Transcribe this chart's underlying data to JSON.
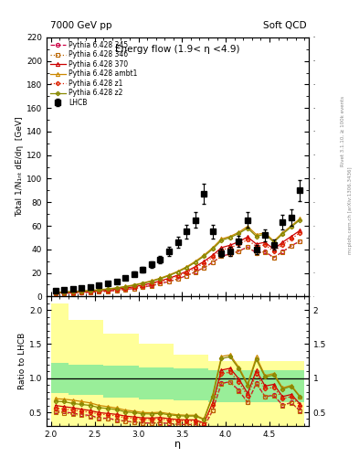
{
  "title_left": "7000 GeV pp",
  "title_right": "Soft QCD",
  "plot_title": "Energy flow (1.9< η <4.9)",
  "ylabel_main": "Total 1/N₁ₙₜ dE/dη  [GeV]",
  "ylabel_ratio": "Ratio to LHCB",
  "xlabel": "η",
  "right_label": "Rivet 3.1.10, ≥ 100k events",
  "right_label2": "mcplots.cern.ch [arXiv:1306.3436]",
  "lhcb_eta": [
    2.05,
    2.15,
    2.25,
    2.35,
    2.45,
    2.55,
    2.65,
    2.75,
    2.85,
    2.95,
    3.05,
    3.15,
    3.25,
    3.35,
    3.45,
    3.55,
    3.65,
    3.75,
    3.85,
    3.95,
    4.05,
    4.15,
    4.25,
    4.35,
    4.45,
    4.55,
    4.65,
    4.75,
    4.85
  ],
  "lhcb_vals": [
    5.0,
    5.5,
    6.2,
    7.0,
    8.0,
    9.5,
    11.0,
    13.0,
    16.0,
    19.0,
    23.0,
    27.0,
    31.0,
    38.0,
    46.0,
    55.0,
    65.0,
    87.0,
    55.0,
    37.0,
    38.0,
    47.0,
    65.0,
    40.0,
    52.0,
    44.0,
    63.0,
    67.0,
    90.0
  ],
  "lhcb_err_lo": [
    0.5,
    0.5,
    0.6,
    0.7,
    0.8,
    0.9,
    1.1,
    1.3,
    1.6,
    1.9,
    2.3,
    2.7,
    3.1,
    3.8,
    4.6,
    5.5,
    6.5,
    8.7,
    5.5,
    3.7,
    3.8,
    4.7,
    6.5,
    4.0,
    5.2,
    4.4,
    6.3,
    6.7,
    9.0
  ],
  "lhcb_err_hi": [
    0.5,
    0.5,
    0.6,
    0.7,
    0.8,
    0.9,
    1.1,
    1.3,
    1.6,
    1.9,
    2.3,
    2.7,
    3.1,
    3.8,
    4.6,
    5.5,
    6.5,
    8.7,
    5.5,
    3.7,
    3.8,
    4.7,
    6.5,
    4.0,
    5.2,
    4.4,
    6.3,
    6.7,
    9.0
  ],
  "eta_pts": [
    2.05,
    2.15,
    2.25,
    2.35,
    2.45,
    2.55,
    2.65,
    2.75,
    2.85,
    2.95,
    3.05,
    3.15,
    3.25,
    3.35,
    3.45,
    3.55,
    3.65,
    3.75,
    3.85,
    3.95,
    4.05,
    4.15,
    4.25,
    4.35,
    4.45,
    4.55,
    4.65,
    4.75,
    4.85
  ],
  "p345_vals": [
    2.6,
    2.8,
    3.0,
    3.3,
    3.6,
    4.0,
    4.5,
    5.1,
    5.9,
    6.8,
    7.9,
    9.2,
    10.8,
    12.7,
    14.9,
    17.6,
    20.8,
    24.5,
    28.9,
    34.2,
    36.0,
    38.5,
    42.0,
    37.0,
    38.0,
    33.0,
    38.0,
    43.0,
    47.0
  ],
  "p346_vals": [
    2.5,
    2.7,
    2.9,
    3.2,
    3.5,
    3.9,
    4.4,
    5.0,
    5.8,
    6.7,
    7.8,
    9.1,
    10.7,
    12.6,
    14.8,
    17.5,
    20.7,
    24.4,
    28.8,
    34.1,
    35.8,
    38.2,
    41.8,
    36.8,
    37.8,
    32.8,
    37.8,
    42.8,
    46.8
  ],
  "p370_vals": [
    3.0,
    3.2,
    3.5,
    3.8,
    4.2,
    4.7,
    5.3,
    6.1,
    7.1,
    8.2,
    9.6,
    11.2,
    13.1,
    15.4,
    18.1,
    21.3,
    25.2,
    29.7,
    35.0,
    41.4,
    43.5,
    46.5,
    50.5,
    44.5,
    46.0,
    40.0,
    46.0,
    51.0,
    56.0
  ],
  "pambt1_vals": [
    3.5,
    3.8,
    4.2,
    4.6,
    5.1,
    5.7,
    6.4,
    7.3,
    8.5,
    9.8,
    11.4,
    13.3,
    15.5,
    18.2,
    21.3,
    25.1,
    29.7,
    35.0,
    41.3,
    48.8,
    51.0,
    54.5,
    59.5,
    52.5,
    54.0,
    47.0,
    54.0,
    60.0,
    66.0
  ],
  "pz1_vals": [
    2.8,
    3.0,
    3.3,
    3.6,
    4.0,
    4.5,
    5.1,
    5.8,
    6.7,
    7.8,
    9.1,
    10.6,
    12.4,
    14.6,
    17.2,
    20.2,
    23.9,
    28.2,
    33.3,
    39.4,
    41.4,
    44.2,
    48.2,
    42.4,
    43.8,
    38.1,
    43.9,
    49.0,
    54.0
  ],
  "pz2_vals": [
    3.3,
    3.6,
    3.9,
    4.3,
    4.8,
    5.4,
    6.1,
    7.0,
    8.1,
    9.4,
    11.0,
    12.8,
    15.0,
    17.6,
    20.7,
    24.4,
    28.9,
    34.1,
    40.2,
    47.6,
    50.0,
    53.5,
    58.0,
    51.0,
    53.0,
    46.0,
    53.0,
    59.0,
    65.0
  ],
  "ylim_main": [
    0,
    220
  ],
  "ylim_ratio": [
    0.3,
    2.2
  ],
  "band_eta_edges": [
    2.0,
    2.1,
    2.2,
    2.3,
    2.4,
    2.5,
    2.6,
    2.7,
    2.8,
    2.9,
    3.0,
    3.1,
    3.2,
    3.3,
    3.4,
    3.5,
    3.6,
    3.7,
    3.8,
    3.9,
    4.0,
    4.1,
    4.2,
    4.3,
    4.4,
    4.5,
    4.6,
    4.7,
    4.8,
    4.9
  ],
  "band_yellow_lo": [
    0.3,
    0.3,
    0.3,
    0.3,
    0.3,
    0.3,
    0.3,
    0.3,
    0.3,
    0.3,
    0.3,
    0.3,
    0.3,
    0.3,
    0.3,
    0.3,
    0.3,
    0.3,
    0.3,
    0.3,
    0.3,
    0.3,
    0.3,
    0.3,
    0.3,
    0.3,
    0.3,
    0.3,
    0.3
  ],
  "band_yellow_hi": [
    2.1,
    2.1,
    1.85,
    1.85,
    1.85,
    1.85,
    1.65,
    1.65,
    1.65,
    1.65,
    1.5,
    1.5,
    1.5,
    1.5,
    1.35,
    1.35,
    1.35,
    1.35,
    1.25,
    1.25,
    1.25,
    1.25,
    1.25,
    1.25,
    1.25,
    1.25,
    1.25,
    1.25,
    1.25
  ],
  "band_green_lo": [
    0.78,
    0.78,
    0.75,
    0.75,
    0.75,
    0.75,
    0.72,
    0.72,
    0.72,
    0.72,
    0.69,
    0.69,
    0.69,
    0.69,
    0.67,
    0.67,
    0.67,
    0.67,
    0.65,
    0.65,
    0.65,
    0.65,
    0.65,
    0.65,
    0.65,
    0.65,
    0.65,
    0.65,
    0.65
  ],
  "band_green_hi": [
    1.22,
    1.22,
    1.2,
    1.2,
    1.2,
    1.2,
    1.18,
    1.18,
    1.18,
    1.18,
    1.16,
    1.16,
    1.16,
    1.16,
    1.14,
    1.14,
    1.14,
    1.14,
    1.12,
    1.12,
    1.12,
    1.12,
    1.12,
    1.12,
    1.12,
    1.12,
    1.12,
    1.12,
    1.12
  ],
  "color_345": "#cc0044",
  "color_346": "#bb6600",
  "color_370": "#cc0000",
  "color_ambt1": "#cc8800",
  "color_z1": "#dd2200",
  "color_z2": "#888800",
  "yticks_main": [
    0,
    20,
    40,
    60,
    80,
    100,
    120,
    140,
    160,
    180,
    200,
    220
  ],
  "yticks_ratio_left": [
    0.5,
    1.0,
    1.5,
    2.0
  ],
  "yticks_ratio_right": [
    0.5,
    1.0,
    1.5,
    2.0
  ],
  "xticks": [
    2.0,
    2.5,
    3.0,
    3.5,
    4.0,
    4.5
  ],
  "xlim": [
    1.95,
    4.95
  ]
}
